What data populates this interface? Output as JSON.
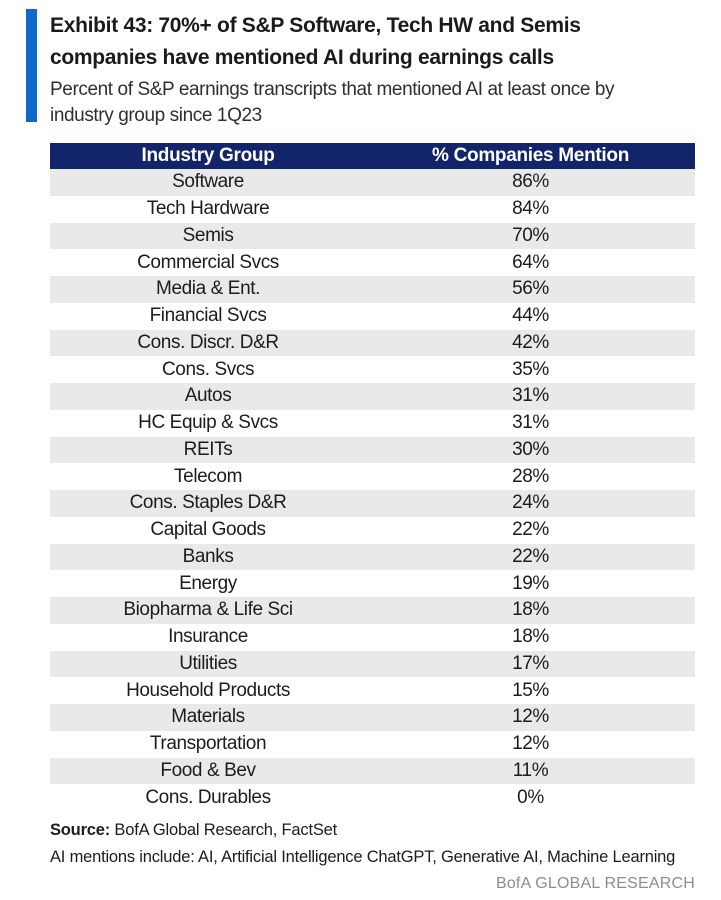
{
  "colors": {
    "accent_bar": "#1268c9",
    "table_header_bg": "#12256a",
    "table_header_text": "#ffffff",
    "row_alt_bg": "#e9e9e9",
    "brand_text": "#8d8d8d"
  },
  "header": {
    "title_line1": "Exhibit 43: 70%+ of S&P Software, Tech HW and Semis",
    "title_line2": "companies have mentioned AI during earnings calls",
    "subtitle_line1": "Percent of S&P earnings transcripts that mentioned AI at least once by",
    "subtitle_line2": "industry group since 1Q23"
  },
  "table": {
    "columns": [
      {
        "label": "Industry Group"
      },
      {
        "label": "% Companies Mention"
      }
    ],
    "rows": [
      {
        "industry": "Software",
        "value": "86%"
      },
      {
        "industry": "Tech Hardware",
        "value": "84%"
      },
      {
        "industry": "Semis",
        "value": "70%"
      },
      {
        "industry": "Commercial Svcs",
        "value": "64%"
      },
      {
        "industry": "Media & Ent.",
        "value": "56%"
      },
      {
        "industry": "Financial Svcs",
        "value": "44%"
      },
      {
        "industry": "Cons. Discr. D&R",
        "value": "42%"
      },
      {
        "industry": "Cons. Svcs",
        "value": "35%"
      },
      {
        "industry": "Autos",
        "value": "31%"
      },
      {
        "industry": "HC Equip & Svcs",
        "value": "31%"
      },
      {
        "industry": "REITs",
        "value": "30%"
      },
      {
        "industry": "Telecom",
        "value": "28%"
      },
      {
        "industry": "Cons. Staples D&R",
        "value": "24%"
      },
      {
        "industry": "Capital Goods",
        "value": "22%"
      },
      {
        "industry": "Banks",
        "value": "22%"
      },
      {
        "industry": "Energy",
        "value": "19%"
      },
      {
        "industry": "Biopharma & Life Sci",
        "value": "18%"
      },
      {
        "industry": "Insurance",
        "value": "18%"
      },
      {
        "industry": "Utilities",
        "value": "17%"
      },
      {
        "industry": "Household Products",
        "value": "15%"
      },
      {
        "industry": "Materials",
        "value": "12%"
      },
      {
        "industry": "Transportation",
        "value": "12%"
      },
      {
        "industry": "Food & Bev",
        "value": "11%"
      },
      {
        "industry": "Cons. Durables",
        "value": "0%"
      }
    ]
  },
  "footer": {
    "source_label": "Source:",
    "source_text": " BofA Global Research, FactSet",
    "note": "AI mentions include: AI, Artificial Intelligence ChatGPT, Generative AI, Machine Learning",
    "brand": "BofA GLOBAL RESEARCH"
  },
  "chart_data": {
    "type": "table",
    "title": "Exhibit 43: 70%+ of S&P Software, Tech HW and Semis companies have mentioned AI during earnings calls",
    "subtitle": "Percent of S&P earnings transcripts that mentioned AI at least once by industry group since 1Q23",
    "columns": [
      "Industry Group",
      "% Companies Mention"
    ],
    "categories": [
      "Software",
      "Tech Hardware",
      "Semis",
      "Commercial Svcs",
      "Media & Ent.",
      "Financial Svcs",
      "Cons. Discr. D&R",
      "Cons. Svcs",
      "Autos",
      "HC Equip & Svcs",
      "REITs",
      "Telecom",
      "Cons. Staples D&R",
      "Capital Goods",
      "Banks",
      "Energy",
      "Biopharma & Life Sci",
      "Insurance",
      "Utilities",
      "Household Products",
      "Materials",
      "Transportation",
      "Food & Bev",
      "Cons. Durables"
    ],
    "values": [
      86,
      84,
      70,
      64,
      56,
      44,
      42,
      35,
      31,
      31,
      30,
      28,
      24,
      22,
      22,
      19,
      18,
      18,
      17,
      15,
      12,
      12,
      11,
      0
    ],
    "unit": "%",
    "source": "BofA Global Research, FactSet"
  }
}
